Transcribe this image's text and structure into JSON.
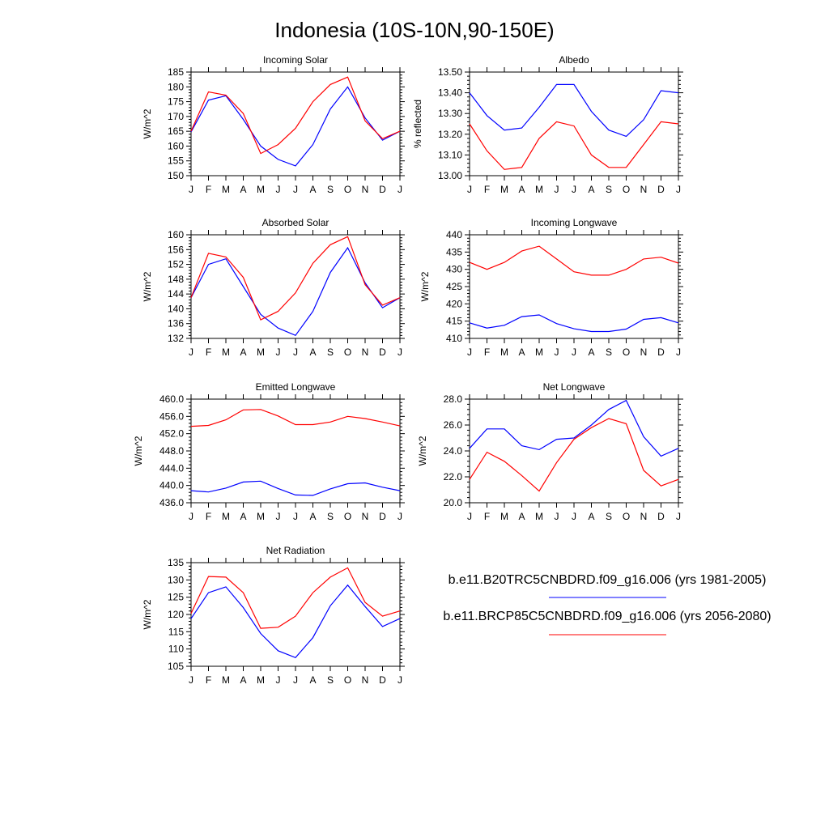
{
  "page": {
    "title": "Indonesia (10S-10N,90-150E)"
  },
  "legend": {
    "entries": [
      {
        "label": "b.e11.B20TRC5CNBDRD.f09_g16.006 (yrs 1981-2005)",
        "color": "#0000ff"
      },
      {
        "label": "b.e11.BRCP85C5CNBDRD.f09_g16.006 (yrs 2056-2080)",
        "color": "#ff0000"
      }
    ]
  },
  "colors": {
    "series1": "#0000ff",
    "series2": "#ff0000"
  },
  "chart_data": [
    {
      "type": "line",
      "title": "Incoming Solar",
      "ylabel": "W/m^2",
      "x": [
        "J",
        "F",
        "M",
        "A",
        "M",
        "J",
        "J",
        "A",
        "S",
        "O",
        "N",
        "D",
        "J"
      ],
      "ylim": [
        150,
        185
      ],
      "yticks": [
        "150",
        "155",
        "160",
        "165",
        "170",
        "175",
        "180",
        "185"
      ],
      "series": [
        {
          "values": [
            164.8,
            175.5,
            177.0,
            169.0,
            160.0,
            155.5,
            153.3,
            160.5,
            172.5,
            180.0,
            169.5,
            162.0,
            165.0
          ]
        },
        {
          "values": [
            165.0,
            178.3,
            177.2,
            171.0,
            157.5,
            160.5,
            166.0,
            175.0,
            180.8,
            183.3,
            168.5,
            162.5,
            165.0
          ]
        }
      ]
    },
    {
      "type": "line",
      "title": "Albedo",
      "ylabel": "% reflected",
      "x": [
        "J",
        "F",
        "M",
        "A",
        "M",
        "J",
        "J",
        "A",
        "S",
        "O",
        "N",
        "D",
        "J"
      ],
      "ylim": [
        13.0,
        13.5
      ],
      "yticks": [
        "13.00",
        "13.10",
        "13.20",
        "13.30",
        "13.40",
        "13.50"
      ],
      "series": [
        {
          "values": [
            13.4,
            13.29,
            13.22,
            13.23,
            13.33,
            13.44,
            13.44,
            13.31,
            13.22,
            13.19,
            13.27,
            13.41,
            13.4
          ]
        },
        {
          "values": [
            13.25,
            13.12,
            13.03,
            13.04,
            13.18,
            13.26,
            13.24,
            13.1,
            13.04,
            13.04,
            13.15,
            13.26,
            13.25
          ]
        }
      ]
    },
    {
      "type": "line",
      "title": "Absorbed Solar",
      "ylabel": "W/m^2",
      "x": [
        "J",
        "F",
        "M",
        "A",
        "M",
        "J",
        "J",
        "A",
        "S",
        "O",
        "N",
        "D",
        "J"
      ],
      "ylim": [
        132,
        160
      ],
      "yticks": [
        "132",
        "136",
        "140",
        "144",
        "148",
        "152",
        "156",
        "160"
      ],
      "series": [
        {
          "values": [
            143.0,
            152.0,
            153.5,
            146.0,
            138.5,
            134.8,
            132.8,
            139.3,
            149.8,
            156.5,
            147.0,
            140.3,
            143.0
          ]
        },
        {
          "values": [
            143.0,
            155.0,
            154.0,
            148.5,
            137.0,
            139.3,
            144.3,
            152.3,
            157.3,
            159.5,
            146.5,
            141.0,
            143.0
          ]
        }
      ]
    },
    {
      "type": "line",
      "title": "Incoming Longwave",
      "ylabel": "W/m^2",
      "x": [
        "J",
        "F",
        "M",
        "A",
        "M",
        "J",
        "J",
        "A",
        "S",
        "O",
        "N",
        "D",
        "J"
      ],
      "ylim": [
        410,
        440
      ],
      "yticks": [
        "410",
        "415",
        "420",
        "425",
        "430",
        "435",
        "440"
      ],
      "series": [
        {
          "values": [
            414.5,
            413.0,
            413.8,
            416.3,
            416.8,
            414.3,
            412.8,
            412.0,
            412.0,
            412.7,
            415.5,
            416.0,
            414.5
          ]
        },
        {
          "values": [
            432.0,
            430.0,
            432.0,
            435.3,
            436.7,
            433.0,
            429.3,
            428.3,
            428.3,
            430.0,
            433.0,
            433.5,
            431.8
          ]
        }
      ]
    },
    {
      "type": "line",
      "title": "Emitted Longwave",
      "ylabel": "W/m^2",
      "x": [
        "J",
        "F",
        "M",
        "A",
        "M",
        "J",
        "J",
        "A",
        "S",
        "O",
        "N",
        "D",
        "J"
      ],
      "ylim": [
        436.0,
        460.0
      ],
      "yticks": [
        "436.0",
        "440.0",
        "444.0",
        "448.0",
        "452.0",
        "456.0",
        "460.0"
      ],
      "series": [
        {
          "values": [
            438.8,
            438.5,
            439.4,
            440.8,
            441.0,
            439.3,
            437.8,
            437.7,
            439.2,
            440.4,
            440.6,
            439.6,
            438.8
          ]
        },
        {
          "values": [
            453.7,
            453.9,
            455.2,
            457.5,
            457.6,
            456.1,
            454.1,
            454.1,
            454.7,
            456.0,
            455.5,
            454.7,
            453.8
          ]
        }
      ]
    },
    {
      "type": "line",
      "title": "Net Longwave",
      "ylabel": "W/m^2",
      "x": [
        "J",
        "F",
        "M",
        "A",
        "M",
        "J",
        "J",
        "A",
        "S",
        "O",
        "N",
        "D",
        "J"
      ],
      "ylim": [
        20.0,
        28.0
      ],
      "yticks": [
        "20.0",
        "22.0",
        "24.0",
        "26.0",
        "28.0"
      ],
      "series": [
        {
          "values": [
            24.2,
            25.7,
            25.7,
            24.4,
            24.1,
            24.9,
            25.0,
            26.0,
            27.2,
            27.9,
            25.1,
            23.6,
            24.2
          ]
        },
        {
          "values": [
            21.8,
            23.9,
            23.2,
            22.1,
            20.9,
            23.1,
            24.9,
            25.8,
            26.5,
            26.1,
            22.5,
            21.3,
            21.8
          ]
        }
      ]
    },
    {
      "type": "line",
      "title": "Net Radiation",
      "ylabel": "W/m^2",
      "x": [
        "J",
        "F",
        "M",
        "A",
        "M",
        "J",
        "J",
        "A",
        "S",
        "O",
        "N",
        "D",
        "J"
      ],
      "ylim": [
        105,
        135
      ],
      "yticks": [
        "105",
        "110",
        "115",
        "120",
        "125",
        "130",
        "135"
      ],
      "series": [
        {
          "values": [
            118.8,
            126.3,
            128.0,
            122.0,
            114.5,
            109.5,
            107.5,
            113.3,
            122.5,
            128.5,
            122.3,
            116.5,
            118.8
          ]
        },
        {
          "values": [
            120.3,
            131.0,
            130.8,
            126.3,
            116.0,
            116.3,
            119.5,
            126.3,
            130.8,
            133.5,
            123.5,
            119.5,
            121.0
          ]
        }
      ]
    }
  ]
}
